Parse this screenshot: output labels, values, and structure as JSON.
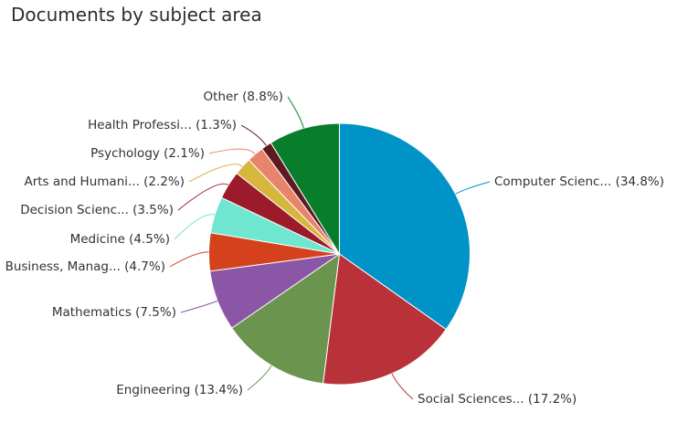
{
  "title": "Documents by subject area",
  "chart_data": {
    "type": "pie",
    "title": "Documents by subject area",
    "unit": "%",
    "slices": [
      {
        "label": "Computer Scienc...",
        "value": 34.8,
        "color": "#0093c7"
      },
      {
        "label": "Social Sciences...",
        "value": 17.2,
        "color": "#b9323a"
      },
      {
        "label": "Engineering",
        "value": 13.4,
        "color": "#6b944f"
      },
      {
        "label": "Mathematics",
        "value": 7.5,
        "color": "#8c56a6"
      },
      {
        "label": "Business, Manag...",
        "value": 4.7,
        "color": "#d5411d"
      },
      {
        "label": "Medicine",
        "value": 4.5,
        "color": "#6fe6cf"
      },
      {
        "label": "Decision Scienc...",
        "value": 3.5,
        "color": "#9b1b2b"
      },
      {
        "label": "Arts and Humani...",
        "value": 2.2,
        "color": "#d7b63f"
      },
      {
        "label": "Psychology",
        "value": 2.1,
        "color": "#e8846c"
      },
      {
        "label": "Health Professi...",
        "value": 1.3,
        "color": "#5e1a22"
      },
      {
        "label": "Other",
        "value": 8.8,
        "color": "#087e2c"
      }
    ]
  }
}
